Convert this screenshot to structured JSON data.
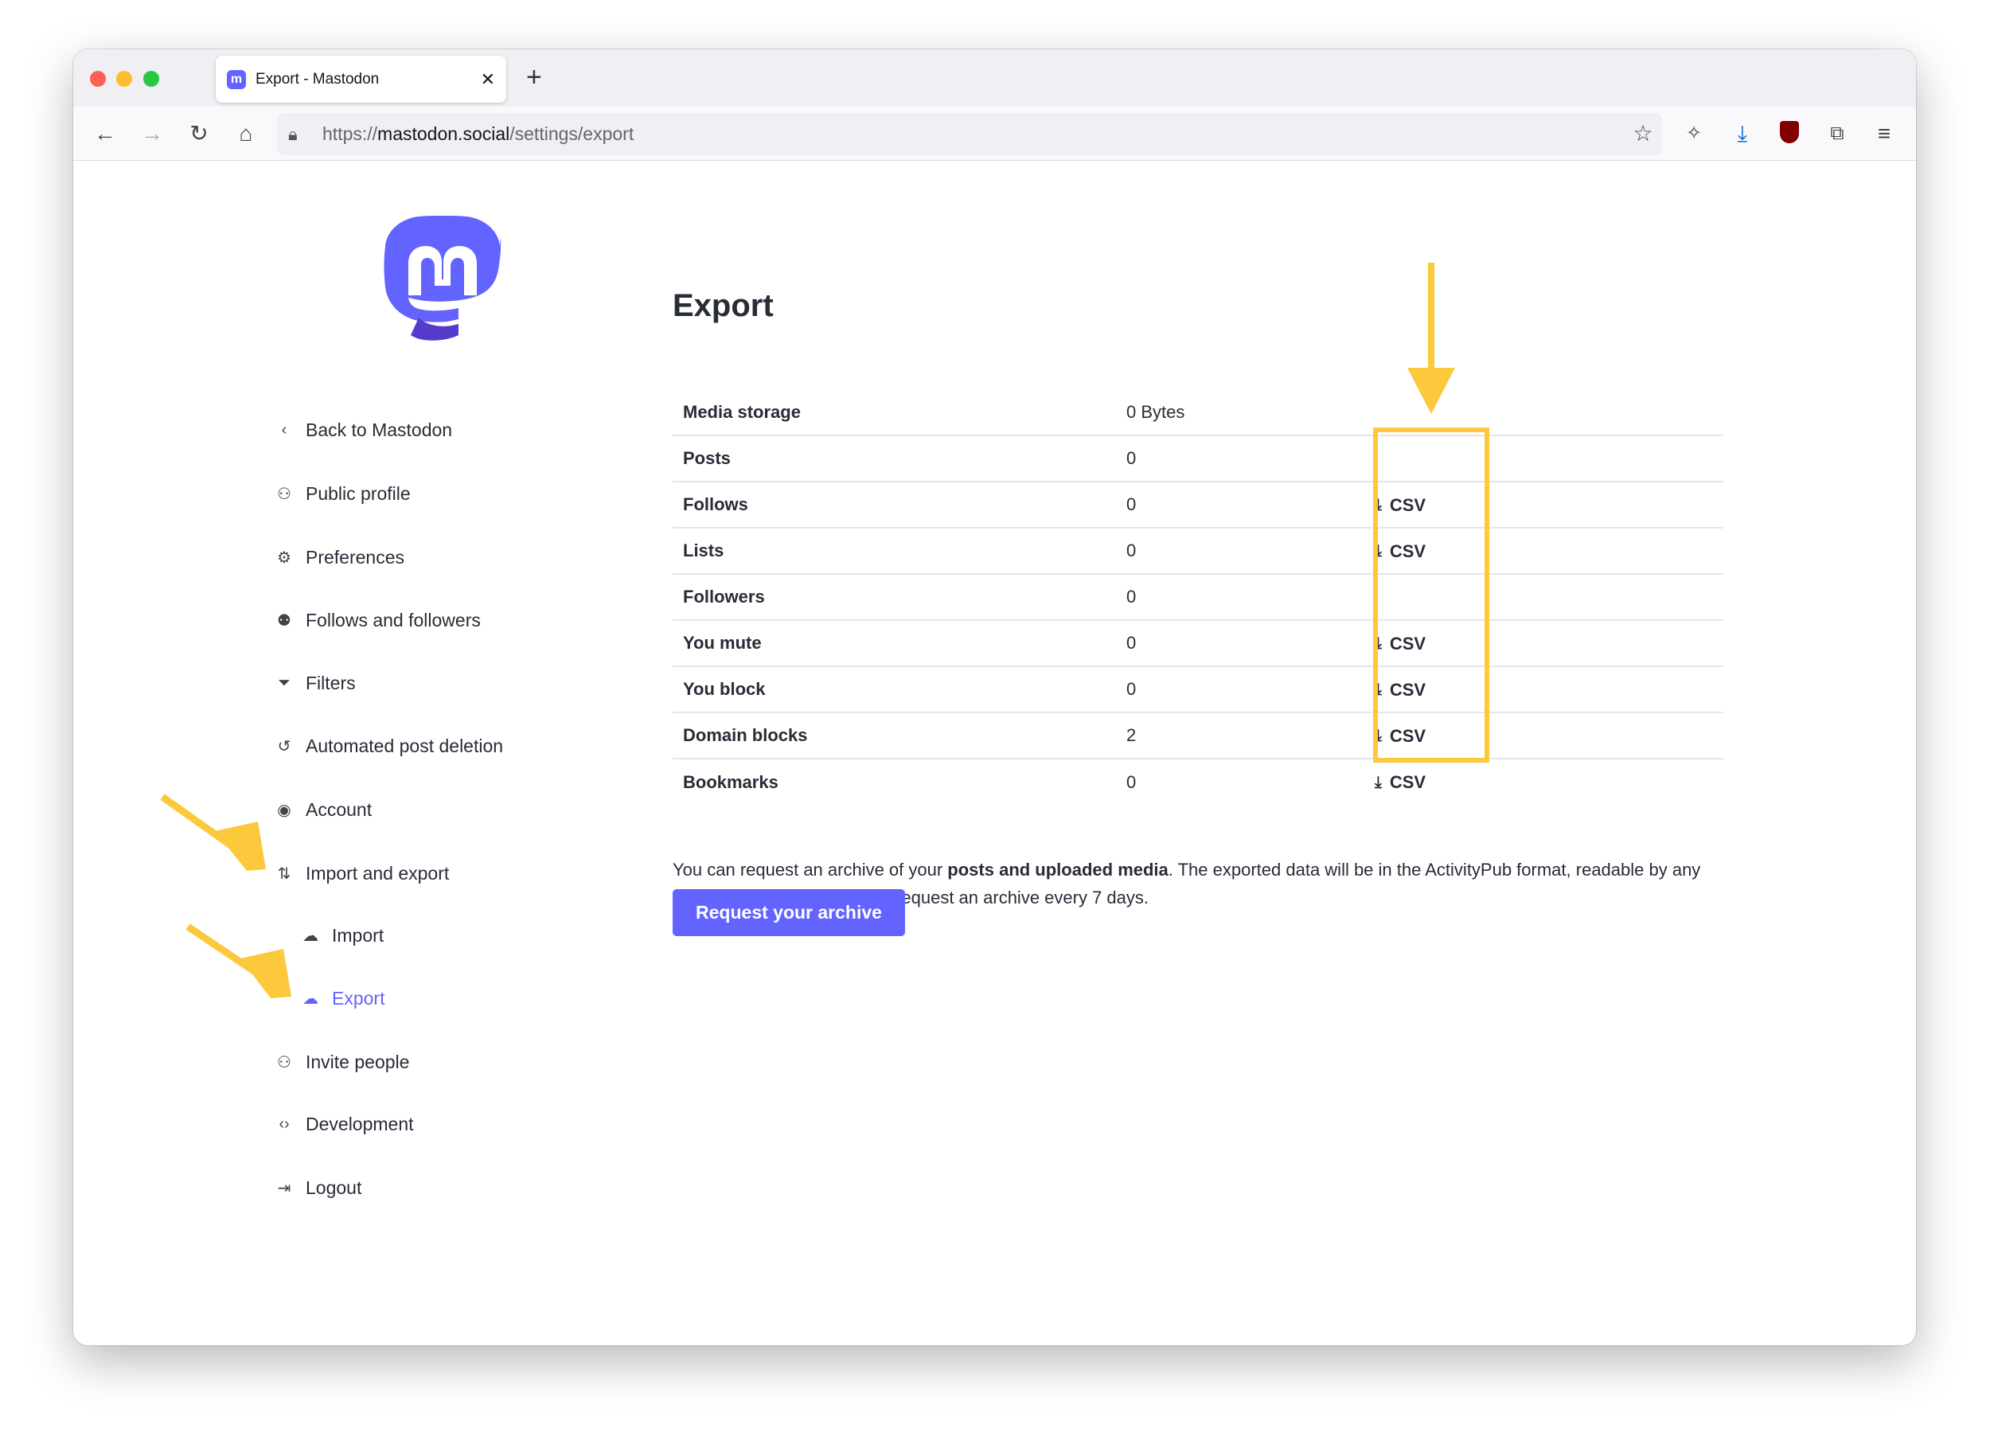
{
  "browser": {
    "tab_title": "Export - Mastodon",
    "url_prefix": "https://",
    "url_domain": "mastodon.social",
    "url_path": "/settings/export",
    "icons": [
      "back-icon",
      "forward-icon",
      "reload-icon",
      "home-icon",
      "lock-icon",
      "bookmark-star-icon",
      "extension-icon",
      "downloads-icon",
      "ublock-icon",
      "extensions-icon",
      "menu-icon"
    ]
  },
  "sidebar": {
    "items": [
      {
        "label": "Back to Mastodon",
        "icon": "chevron-left-icon"
      },
      {
        "label": "Public profile",
        "icon": "person-icon"
      },
      {
        "label": "Preferences",
        "icon": "gear-icon"
      },
      {
        "label": "Follows and followers",
        "icon": "people-icon"
      },
      {
        "label": "Filters",
        "icon": "filter-icon"
      },
      {
        "label": "Automated post deletion",
        "icon": "history-icon"
      },
      {
        "label": "Account",
        "icon": "account-circle-icon"
      },
      {
        "label": "Import and export",
        "icon": "import-export-icon"
      },
      {
        "label": "Import",
        "icon": "cloud-upload-icon",
        "sub": true
      },
      {
        "label": "Export",
        "icon": "cloud-download-icon",
        "sub": true,
        "active": true
      },
      {
        "label": "Invite people",
        "icon": "person-add-icon"
      },
      {
        "label": "Development",
        "icon": "code-icon"
      },
      {
        "label": "Logout",
        "icon": "logout-icon"
      }
    ]
  },
  "main": {
    "title": "Export",
    "rows": [
      {
        "label": "Media storage",
        "value": "0 Bytes",
        "csv": ""
      },
      {
        "label": "Posts",
        "value": "0",
        "csv": ""
      },
      {
        "label": "Follows",
        "value": "0",
        "csv": "CSV"
      },
      {
        "label": "Lists",
        "value": "0",
        "csv": "CSV"
      },
      {
        "label": "Followers",
        "value": "0",
        "csv": ""
      },
      {
        "label": "You mute",
        "value": "0",
        "csv": "CSV"
      },
      {
        "label": "You block",
        "value": "0",
        "csv": "CSV"
      },
      {
        "label": "Domain blocks",
        "value": "2",
        "csv": "CSV"
      },
      {
        "label": "Bookmarks",
        "value": "0",
        "csv": "CSV"
      }
    ],
    "para_1": "You can request an archive of your ",
    "para_bold": "posts and uploaded media",
    "para_2": ". The exported data will be in the ActivityPub format, readable by any compliant software. You can request an archive every 7 days.",
    "request_button": "Request your archive"
  },
  "colors": {
    "accent": "#6364ff",
    "annotation": "#fcc93c"
  }
}
